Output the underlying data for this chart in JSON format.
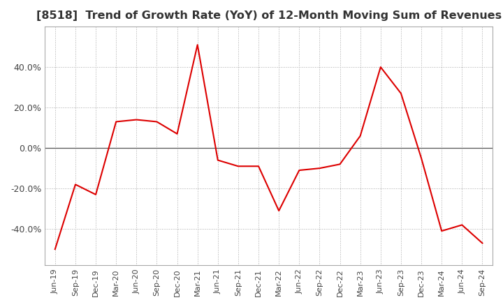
{
  "title": "[8518]  Trend of Growth Rate (YoY) of 12-Month Moving Sum of Revenues",
  "title_fontsize": 11.5,
  "line_color": "#dd0000",
  "background_color": "#ffffff",
  "grid_color": "#aaaaaa",
  "zero_line_color": "#555555",
  "ylim": [
    -0.58,
    0.6
  ],
  "yticks": [
    -0.4,
    -0.2,
    0.0,
    0.2,
    0.4
  ],
  "x_labels": [
    "Jun-19",
    "Sep-19",
    "Dec-19",
    "Mar-20",
    "Jun-20",
    "Sep-20",
    "Dec-20",
    "Mar-21",
    "Jun-21",
    "Sep-21",
    "Dec-21",
    "Mar-22",
    "Jun-22",
    "Sep-22",
    "Dec-22",
    "Mar-23",
    "Jun-23",
    "Sep-23",
    "Dec-23",
    "Mar-24",
    "Jun-24",
    "Sep-24"
  ],
  "values": [
    -0.5,
    -0.18,
    -0.23,
    0.13,
    0.14,
    0.13,
    0.07,
    0.51,
    -0.06,
    -0.09,
    -0.09,
    -0.31,
    -0.11,
    -0.1,
    -0.08,
    0.06,
    0.4,
    0.27,
    -0.05,
    -0.41,
    -0.38,
    -0.47
  ]
}
